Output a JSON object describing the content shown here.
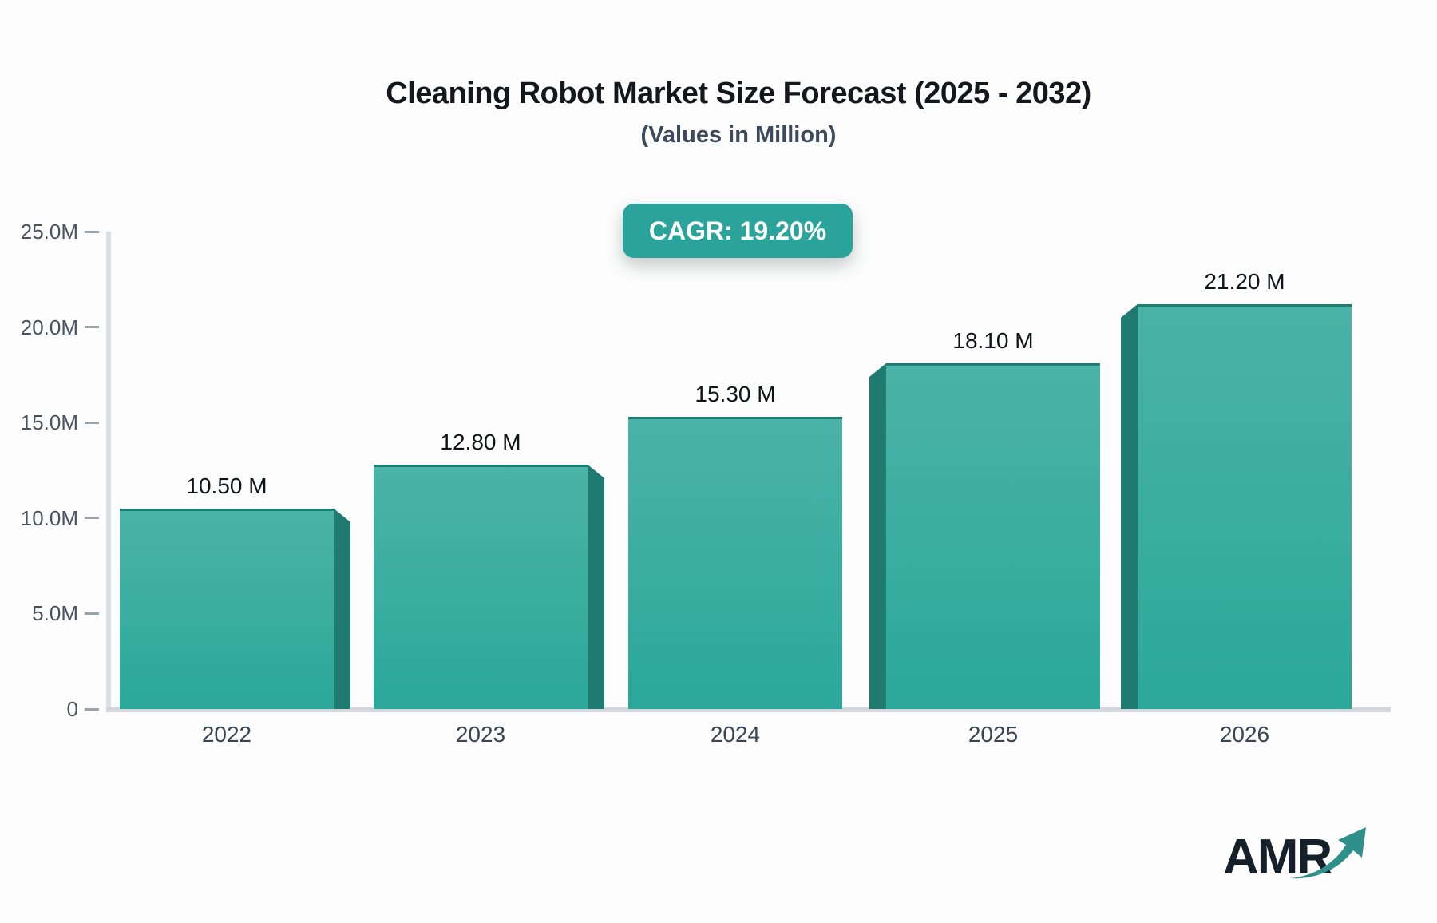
{
  "header": {
    "title": "Cleaning Robot Market Size Forecast (2025 - 2032)",
    "subtitle": "(Values in Million)",
    "cagr_badge": "CAGR: 19.20%"
  },
  "chart_data": {
    "type": "bar",
    "title": "Cleaning Robot Market Size Forecast (2025 - 2032)",
    "subtitle": "(Values in Million)",
    "cagr": "19.20%",
    "categories": [
      "2022",
      "2023",
      "2024",
      "2025",
      "2026"
    ],
    "values": [
      10.5,
      12.8,
      15.3,
      18.1,
      21.2
    ],
    "value_labels": [
      "10.50 M",
      "12.80 M",
      "15.30 M",
      "18.10 M",
      "21.20 M"
    ],
    "unit": "Million",
    "ylim": [
      0,
      25
    ],
    "yticks": [
      {
        "label": "25.0M",
        "value": 25
      },
      {
        "label": "20.0M",
        "value": 20
      },
      {
        "label": "15.0M",
        "value": 15
      },
      {
        "label": "10.0M",
        "value": 10
      },
      {
        "label": "5.0M",
        "value": 5
      },
      {
        "label": "0",
        "value": 0
      }
    ],
    "grid": false,
    "legend": false,
    "colors": {
      "bar_top": "#4bb3a7",
      "bar_bottom": "#2aa89a",
      "bar_edge": "#1d7e73",
      "bar_side_dark": "#1f7a70",
      "badge": "#2aa49a",
      "axis": "#d2d5db"
    }
  },
  "logo": {
    "text": "AMR",
    "arrow_icon_color": "#2f8f89"
  }
}
